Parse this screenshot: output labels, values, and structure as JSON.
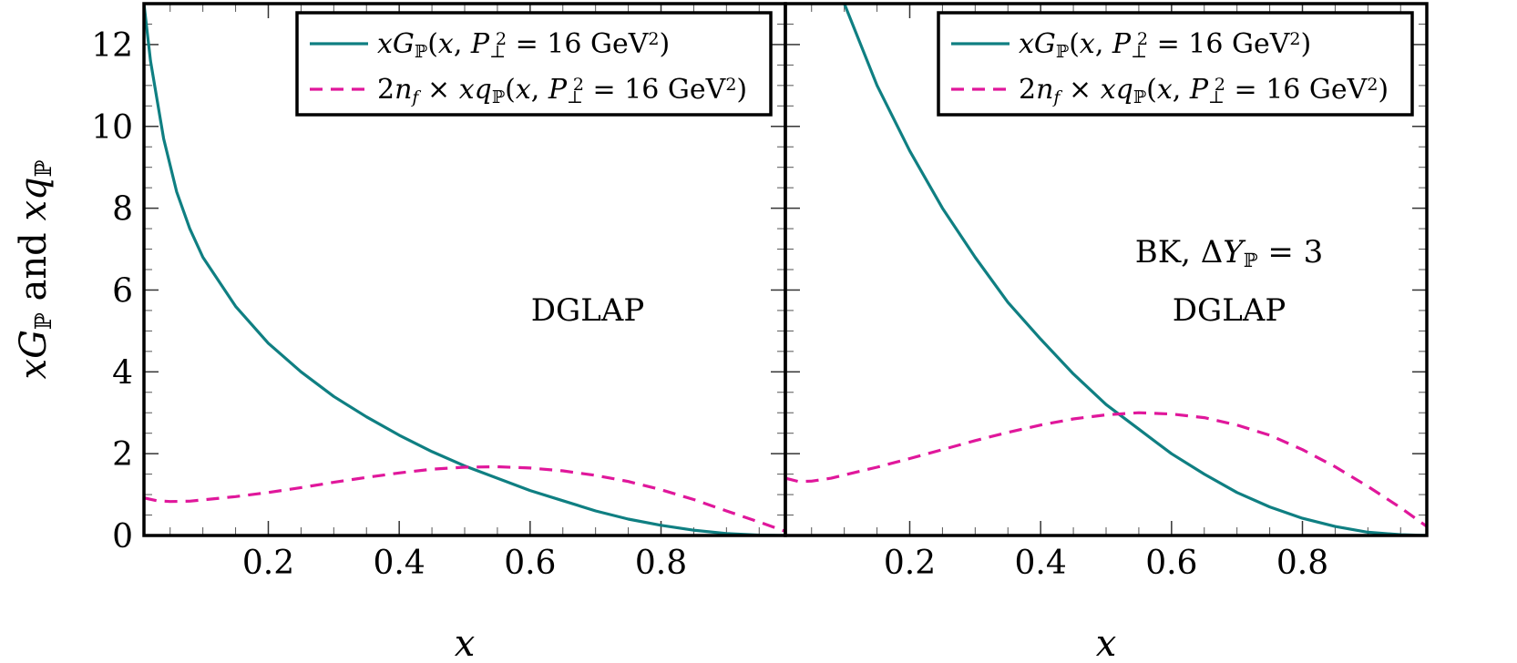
{
  "chart_data": {
    "type": "line",
    "ylabel": "xG and xq",
    "ylabel_sub": "P",
    "ylim": [
      0,
      13
    ],
    "yticks": [
      0,
      2,
      4,
      6,
      8,
      10,
      12
    ],
    "colors": {
      "gluon": "#0f7f82",
      "quark": "#e0179b"
    },
    "panels": [
      {
        "xlabel": "x",
        "xlim": [
          0.01,
          0.99
        ],
        "xticks": [
          0.2,
          0.4,
          0.6,
          0.8
        ],
        "annotations": [
          "DGLAP"
        ],
        "legend": {
          "position": "top-right",
          "entries": [
            {
              "style": "solid",
              "color": "#0f7f82",
              "text": "xG_P(x, P⊥² = 16 GeV²)"
            },
            {
              "style": "dashed",
              "color": "#e0179b",
              "text": "2n_f × xq_P(x, P⊥² = 16 GeV²)"
            }
          ]
        },
        "series": [
          {
            "name": "xG_P(x, P⊥² = 16 GeV²)",
            "style": "solid",
            "x": [
              0.01,
              0.02,
              0.04,
              0.06,
              0.08,
              0.1,
              0.15,
              0.2,
              0.25,
              0.3,
              0.35,
              0.4,
              0.45,
              0.5,
              0.55,
              0.6,
              0.65,
              0.7,
              0.75,
              0.8,
              0.85,
              0.9,
              0.95,
              0.99
            ],
            "y": [
              13.0,
              11.6,
              9.7,
              8.4,
              7.5,
              6.8,
              5.6,
              4.7,
              4.0,
              3.4,
              2.9,
              2.45,
              2.05,
              1.7,
              1.4,
              1.1,
              0.85,
              0.6,
              0.4,
              0.25,
              0.13,
              0.05,
              0.01,
              0.0
            ]
          },
          {
            "name": "2n_f × xq_P(x, P⊥² = 16 GeV²)",
            "style": "dashed",
            "x": [
              0.01,
              0.03,
              0.05,
              0.08,
              0.1,
              0.15,
              0.2,
              0.25,
              0.3,
              0.35,
              0.4,
              0.45,
              0.5,
              0.55,
              0.6,
              0.65,
              0.7,
              0.75,
              0.8,
              0.85,
              0.9,
              0.95,
              0.99
            ],
            "y": [
              0.92,
              0.85,
              0.83,
              0.84,
              0.87,
              0.95,
              1.05,
              1.17,
              1.3,
              1.42,
              1.53,
              1.62,
              1.67,
              1.68,
              1.65,
              1.58,
              1.47,
              1.32,
              1.12,
              0.88,
              0.6,
              0.33,
              0.1
            ]
          }
        ]
      },
      {
        "xlabel": "x",
        "xlim": [
          0.01,
          0.99
        ],
        "xticks": [
          0.2,
          0.4,
          0.6,
          0.8
        ],
        "annotations": [
          "BK, ΔY_P = 3",
          "DGLAP"
        ],
        "legend": {
          "position": "top-right",
          "entries": [
            {
              "style": "solid",
              "color": "#0f7f82",
              "text": "xG_P(x, P⊥² = 16 GeV²)"
            },
            {
              "style": "dashed",
              "color": "#e0179b",
              "text": "2n_f × xq_P(x, P⊥² = 16 GeV²)"
            }
          ]
        },
        "series": [
          {
            "name": "xG_P(x, P⊥² = 16 GeV²)",
            "style": "solid",
            "x": [
              0.1,
              0.15,
              0.2,
              0.25,
              0.3,
              0.35,
              0.4,
              0.45,
              0.5,
              0.55,
              0.6,
              0.65,
              0.7,
              0.75,
              0.8,
              0.85,
              0.9,
              0.95,
              0.99
            ],
            "y": [
              13.0,
              11.0,
              9.4,
              8.0,
              6.8,
              5.7,
              4.8,
              3.95,
              3.2,
              2.6,
              2.0,
              1.5,
              1.05,
              0.7,
              0.42,
              0.22,
              0.08,
              0.02,
              0.0
            ]
          },
          {
            "name": "2n_f × xq_P(x, P⊥² = 16 GeV²)",
            "style": "dashed",
            "x": [
              0.01,
              0.03,
              0.05,
              0.08,
              0.1,
              0.15,
              0.2,
              0.25,
              0.3,
              0.35,
              0.4,
              0.45,
              0.5,
              0.55,
              0.6,
              0.65,
              0.7,
              0.75,
              0.8,
              0.85,
              0.9,
              0.95,
              0.99
            ],
            "y": [
              1.4,
              1.32,
              1.33,
              1.4,
              1.48,
              1.67,
              1.88,
              2.1,
              2.32,
              2.52,
              2.7,
              2.85,
              2.95,
              3.0,
              2.97,
              2.88,
              2.7,
              2.45,
              2.1,
              1.68,
              1.2,
              0.68,
              0.22
            ]
          }
        ]
      }
    ]
  }
}
